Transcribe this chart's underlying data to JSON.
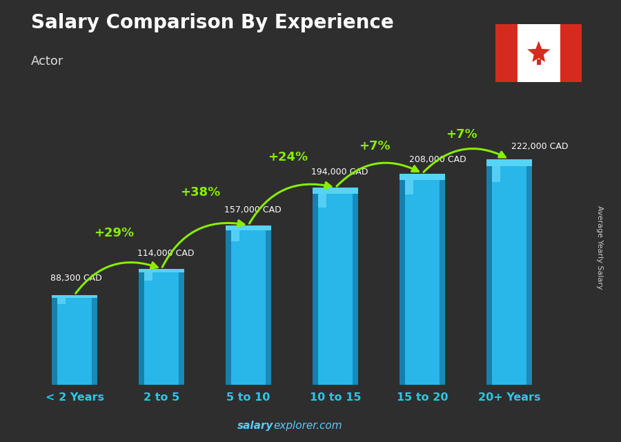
{
  "title": "Salary Comparison By Experience",
  "subtitle": "Actor",
  "categories": [
    "< 2 Years",
    "2 to 5",
    "5 to 10",
    "10 to 15",
    "15 to 20",
    "20+ Years"
  ],
  "values": [
    88300,
    114000,
    157000,
    194000,
    208000,
    222000
  ],
  "value_labels": [
    "88,300 CAD",
    "114,000 CAD",
    "157,000 CAD",
    "194,000 CAD",
    "208,000 CAD",
    "222,000 CAD"
  ],
  "pct_changes": [
    "+29%",
    "+38%",
    "+24%",
    "+7%",
    "+7%"
  ],
  "bar_color_main": "#29b6e8",
  "bar_color_light": "#55d4f5",
  "bar_color_dark": "#1a8ab8",
  "bar_color_side": "#1680ac",
  "background_color": "#2e2e2e",
  "title_color": "#ffffff",
  "subtitle_color": "#dddddd",
  "label_color": "#ffffff",
  "xlabel_color": "#29c8e8",
  "pct_color": "#88ee00",
  "arrow_color": "#88ee00",
  "watermark_salary": "salary",
  "watermark_rest": "explorer.com",
  "watermark_color_bold": "#55ccff",
  "watermark_color": "#55ccff",
  "ylabel_text": "Average Yearly Salary",
  "ylabel_color": "#cccccc",
  "ylim_max": 270000,
  "flag_red": "#d52b1e",
  "flag_white": "#ffffff"
}
